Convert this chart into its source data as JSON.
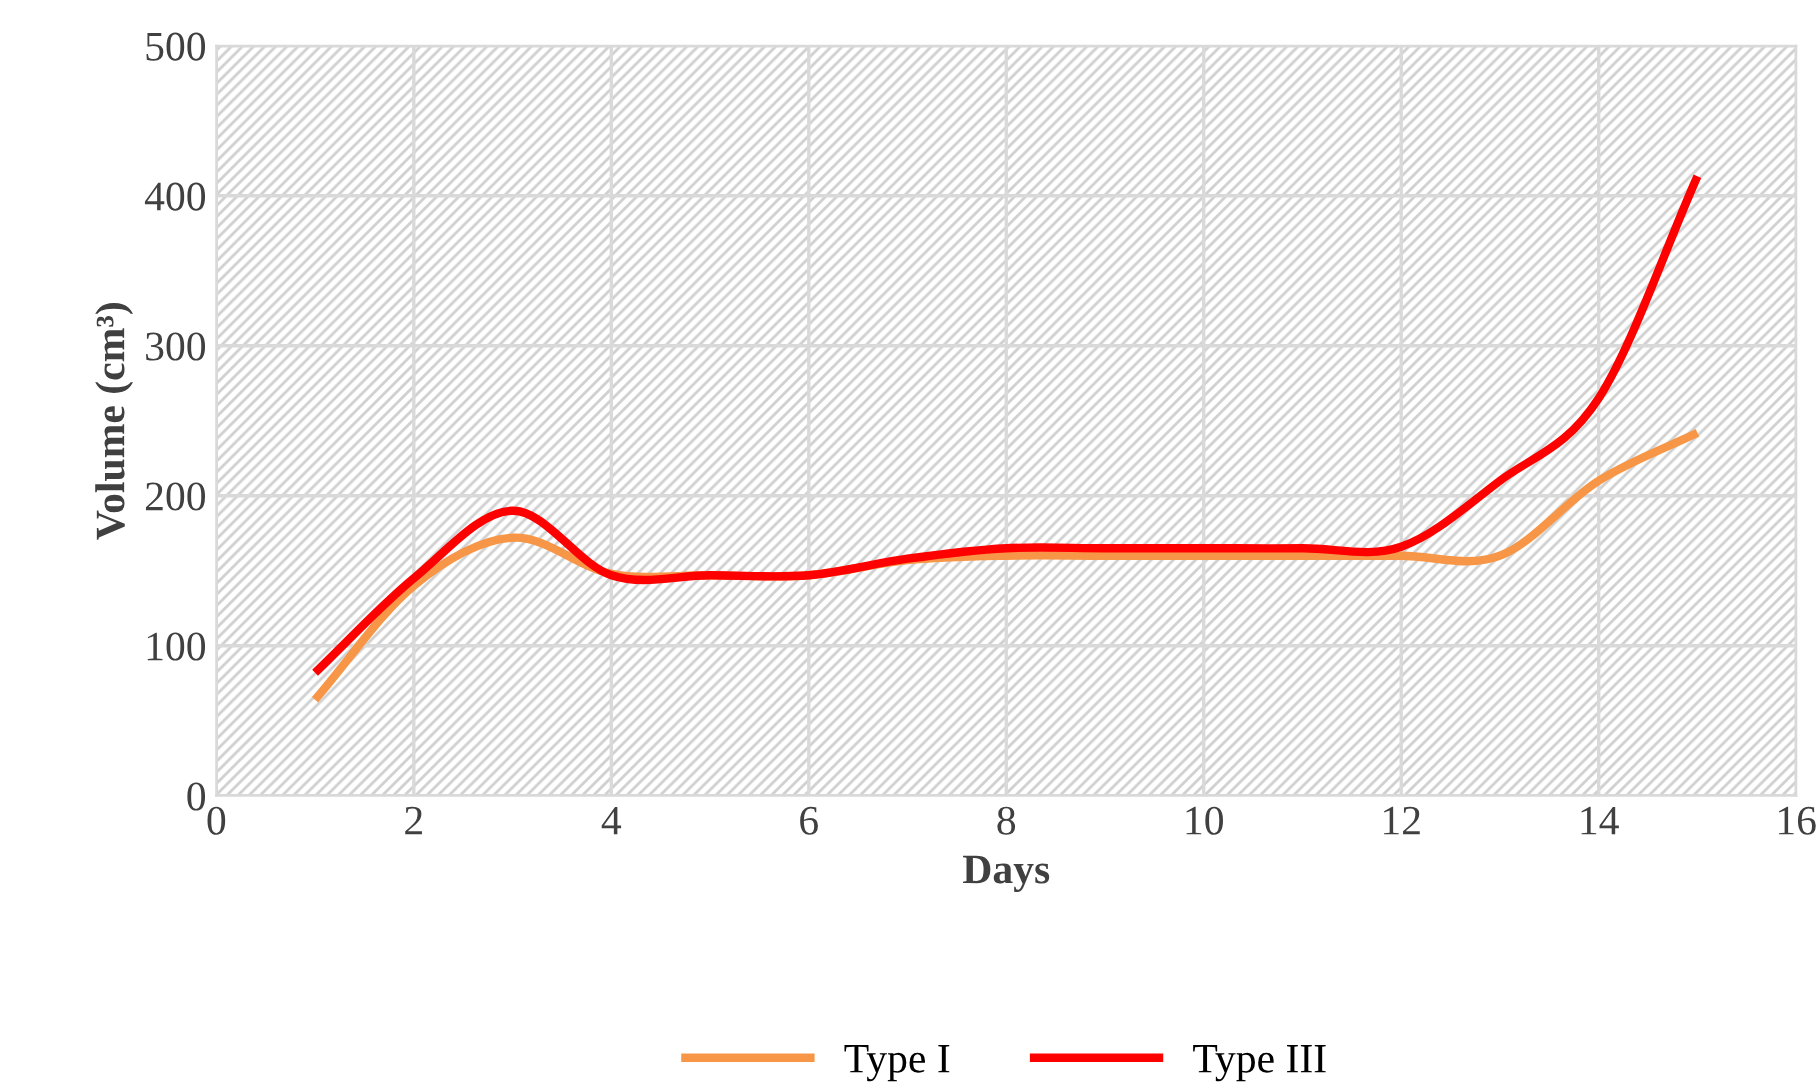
{
  "chart_data": {
    "type": "line",
    "xlabel": "Days",
    "ylabel": "Volume (cm³)",
    "x": [
      1,
      2,
      3,
      4,
      5,
      6,
      7,
      8,
      9,
      10,
      11,
      12,
      13,
      14,
      15
    ],
    "series": [
      {
        "name": "Type I",
        "color": "#f79646",
        "values": [
          64,
          140,
          172,
          148,
          147,
          147,
          157,
          160,
          160,
          160,
          160,
          160,
          160,
          210,
          242
        ]
      },
      {
        "name": "Type III",
        "color": "#ff0000",
        "values": [
          82,
          145,
          190,
          147,
          147,
          147,
          158,
          165,
          165,
          165,
          165,
          166,
          210,
          265,
          413
        ]
      }
    ],
    "xlim": [
      0,
      16
    ],
    "xticks": [
      0,
      2,
      4,
      6,
      8,
      10,
      12,
      14,
      16
    ],
    "ylim": [
      0,
      500
    ],
    "yticks": [
      0,
      100,
      200,
      300,
      400,
      500
    ],
    "grid": true,
    "legend": "bottom",
    "marker": "none",
    "line_style": "solid"
  }
}
